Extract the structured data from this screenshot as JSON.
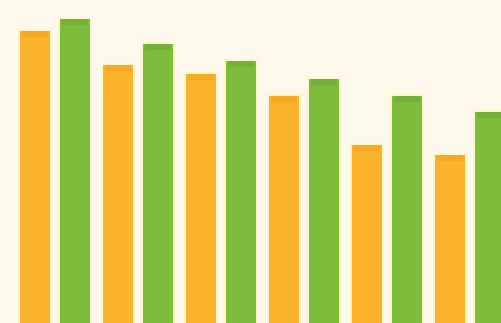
{
  "chart_data": {
    "type": "bar",
    "categories": [
      "",
      "",
      "",
      "",
      "",
      ""
    ],
    "series": [
      {
        "color": "#fbb32b",
        "values": [
          292,
          258,
          249,
          227,
          178,
          168
        ]
      },
      {
        "color": "#7ebd3c",
        "values": [
          304,
          279,
          262,
          244,
          227,
          211
        ]
      }
    ],
    "ylim": [
      0,
      323
    ],
    "grid": false,
    "legend": "none",
    "colors": {
      "background": "#fdf8ec",
      "orange": "#fbb32b",
      "green": "#7ebd3c"
    }
  }
}
